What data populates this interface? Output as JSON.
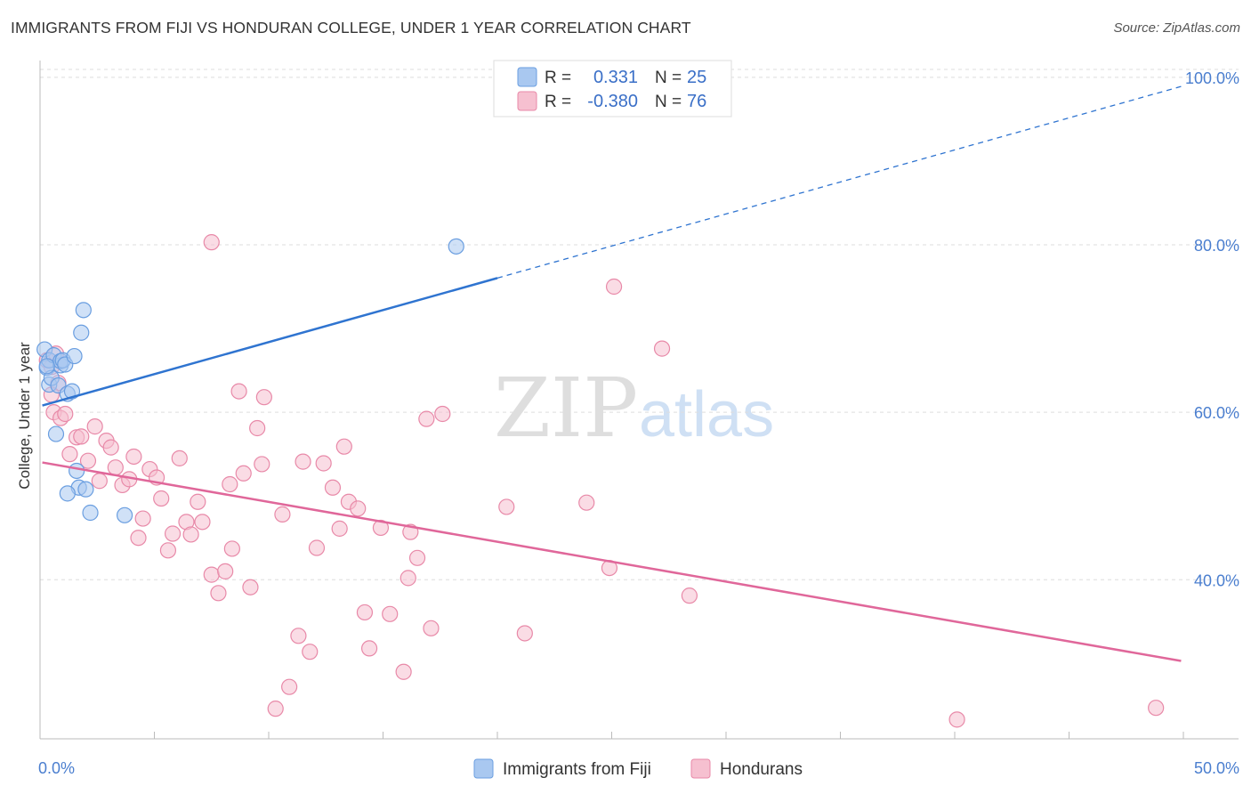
{
  "title": "IMMIGRANTS FROM FIJI VS HONDURAN COLLEGE, UNDER 1 YEAR CORRELATION CHART",
  "source": "Source: ZipAtlas.com",
  "watermark": {
    "zip": "ZIP",
    "atlas": "atlas"
  },
  "colors": {
    "fiji_fill": "#a9c8f0",
    "fiji_stroke": "#6a9ee0",
    "fiji_line": "#2f74d0",
    "hond_fill": "#f6c0d0",
    "hond_stroke": "#e889a8",
    "hond_line": "#e0679a",
    "grid": "#dddddd",
    "tick_label": "#4a7ecf"
  },
  "legend": {
    "rows": [
      {
        "r_label": "R =",
        "r_value": "0.331",
        "n_label": "N =",
        "n_value": "25"
      },
      {
        "r_label": "R =",
        "r_value": "-0.380",
        "n_label": "N =",
        "n_value": "76"
      }
    ]
  },
  "chart_data": {
    "type": "scatter",
    "title": "IMMIGRANTS FROM FIJI VS HONDURAN COLLEGE, UNDER 1 YEAR CORRELATION CHART",
    "xlabel": "",
    "ylabel": "College, Under 1 year",
    "xlim": [
      0,
      50
    ],
    "ylim": [
      21,
      102
    ],
    "x_tick_labels": [
      "0.0%",
      "50.0%"
    ],
    "y_ticks": [
      40,
      60,
      80,
      100
    ],
    "y_tick_labels": [
      "40.0%",
      "60.0%",
      "80.0%",
      "100.0%"
    ],
    "grid": true,
    "legend_position": "top-center",
    "series": [
      {
        "name": "Immigrants from Fiji",
        "r": 0.331,
        "n": 25,
        "trend": {
          "x0": 0.1,
          "y0": 60.8,
          "x_solid_end": 20,
          "x1": 49.9,
          "y1": 98.9
        },
        "points": [
          [
            0.2,
            67.5
          ],
          [
            0.3,
            65.3
          ],
          [
            0.4,
            66.2
          ],
          [
            0.4,
            63.3
          ],
          [
            0.5,
            64.1
          ],
          [
            0.6,
            66.8
          ],
          [
            0.8,
            63.2
          ],
          [
            0.7,
            57.4
          ],
          [
            0.9,
            65.6
          ],
          [
            0.9,
            66.1
          ],
          [
            1.0,
            66.2
          ],
          [
            1.1,
            65.7
          ],
          [
            1.2,
            62.2
          ],
          [
            1.4,
            62.5
          ],
          [
            1.5,
            66.7
          ],
          [
            1.6,
            53.0
          ],
          [
            1.7,
            51.0
          ],
          [
            1.2,
            50.3
          ],
          [
            1.8,
            69.5
          ],
          [
            1.9,
            72.2
          ],
          [
            2.0,
            50.8
          ],
          [
            2.2,
            48.0
          ],
          [
            3.7,
            47.7
          ],
          [
            18.2,
            79.8
          ],
          [
            0.3,
            65.5
          ]
        ]
      },
      {
        "name": "Hondurans",
        "r": -0.38,
        "n": 76,
        "trend": {
          "x0": 0.1,
          "y0": 54.0,
          "x1": 49.9,
          "y1": 30.3
        },
        "points": [
          [
            0.3,
            66.2
          ],
          [
            0.5,
            65.4
          ],
          [
            0.7,
            67.0
          ],
          [
            0.8,
            63.5
          ],
          [
            0.5,
            62.1
          ],
          [
            0.6,
            60.0
          ],
          [
            0.9,
            59.3
          ],
          [
            1.1,
            59.8
          ],
          [
            1.3,
            55.0
          ],
          [
            1.6,
            57.0
          ],
          [
            1.8,
            57.1
          ],
          [
            2.1,
            54.2
          ],
          [
            2.4,
            58.3
          ],
          [
            2.6,
            51.8
          ],
          [
            2.9,
            56.6
          ],
          [
            3.1,
            55.8
          ],
          [
            3.3,
            53.4
          ],
          [
            3.6,
            51.3
          ],
          [
            3.9,
            52.0
          ],
          [
            4.1,
            54.7
          ],
          [
            4.3,
            45.0
          ],
          [
            4.5,
            47.3
          ],
          [
            4.8,
            53.2
          ],
          [
            5.1,
            52.2
          ],
          [
            5.3,
            49.7
          ],
          [
            5.6,
            43.5
          ],
          [
            5.8,
            45.5
          ],
          [
            6.1,
            54.5
          ],
          [
            6.4,
            46.9
          ],
          [
            6.6,
            45.4
          ],
          [
            6.9,
            49.3
          ],
          [
            7.1,
            46.9
          ],
          [
            7.5,
            40.6
          ],
          [
            7.8,
            38.4
          ],
          [
            8.1,
            41.0
          ],
          [
            8.3,
            51.4
          ],
          [
            8.4,
            43.7
          ],
          [
            8.7,
            62.5
          ],
          [
            8.9,
            52.7
          ],
          [
            9.2,
            39.1
          ],
          [
            9.5,
            58.1
          ],
          [
            9.7,
            53.8
          ],
          [
            9.8,
            61.8
          ],
          [
            10.3,
            24.6
          ],
          [
            10.6,
            47.8
          ],
          [
            10.9,
            27.2
          ],
          [
            11.3,
            33.3
          ],
          [
            11.5,
            54.1
          ],
          [
            11.8,
            31.4
          ],
          [
            12.1,
            43.8
          ],
          [
            12.4,
            53.9
          ],
          [
            12.8,
            51.0
          ],
          [
            13.1,
            46.1
          ],
          [
            13.3,
            55.9
          ],
          [
            13.5,
            49.3
          ],
          [
            13.9,
            48.5
          ],
          [
            14.2,
            36.1
          ],
          [
            14.4,
            31.8
          ],
          [
            14.9,
            46.2
          ],
          [
            15.3,
            35.9
          ],
          [
            15.9,
            29.0
          ],
          [
            16.1,
            40.2
          ],
          [
            16.2,
            45.7
          ],
          [
            16.5,
            42.6
          ],
          [
            16.9,
            59.2
          ],
          [
            17.1,
            34.2
          ],
          [
            17.6,
            59.8
          ],
          [
            20.4,
            48.7
          ],
          [
            21.2,
            33.6
          ],
          [
            23.9,
            49.2
          ],
          [
            24.9,
            41.4
          ],
          [
            25.1,
            75.0
          ],
          [
            27.2,
            67.6
          ],
          [
            7.5,
            80.3
          ],
          [
            28.4,
            38.1
          ],
          [
            40.1,
            23.3
          ],
          [
            48.8,
            24.7
          ]
        ]
      }
    ]
  },
  "bottom_legend": [
    "Immigrants from Fiji",
    "Hondurans"
  ]
}
